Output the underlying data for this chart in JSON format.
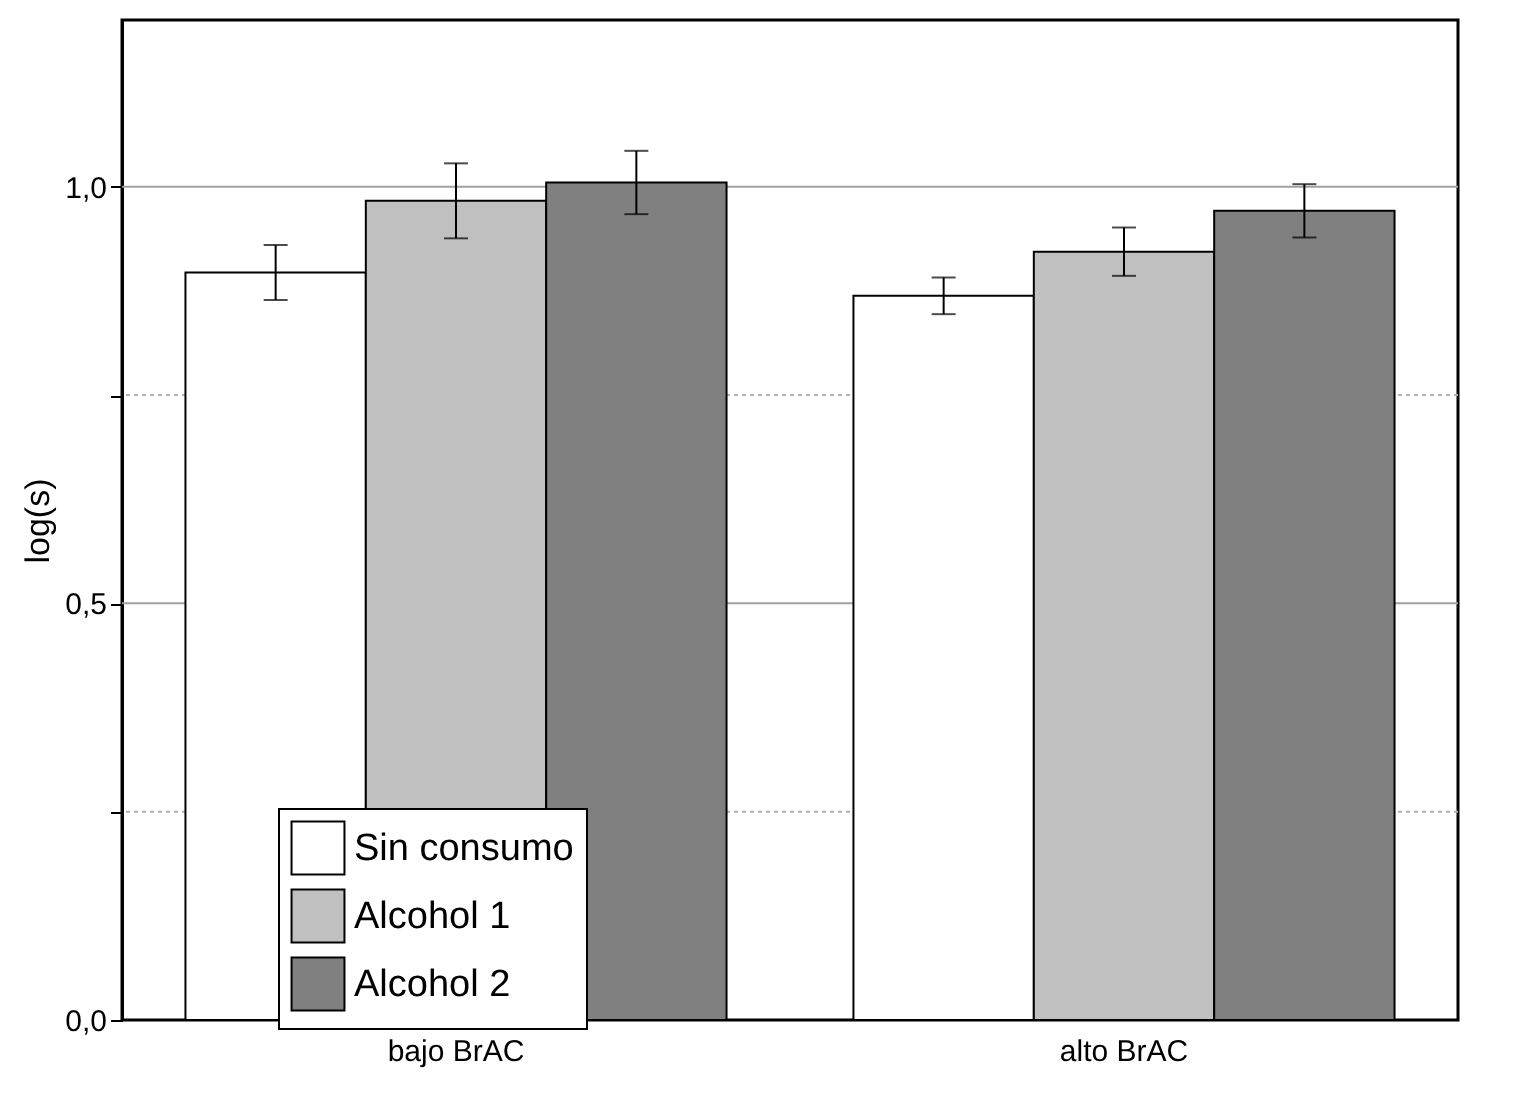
{
  "chart_data": {
    "type": "bar",
    "ylabel": "log(s)",
    "categories": [
      "bajo BrAC",
      "alto BrAC"
    ],
    "series": [
      {
        "name": "Sin consumo",
        "color": "#ffffff",
        "values": [
          0.897,
          0.869
        ],
        "errors": [
          0.033,
          0.022
        ]
      },
      {
        "name": "Alcohol 1",
        "color": "#c0c0c0",
        "values": [
          0.983,
          0.922
        ],
        "errors": [
          0.045,
          0.029
        ]
      },
      {
        "name": "Alcohol 2",
        "color": "#808080",
        "values": [
          1.005,
          0.971
        ],
        "errors": [
          0.038,
          0.032
        ]
      }
    ],
    "ylim": [
      0,
      1.2
    ],
    "yticks": [
      {
        "value": 0,
        "label": "0,0"
      },
      {
        "value": 0.25,
        "label": null
      },
      {
        "value": 0.5,
        "label": "0,5"
      },
      {
        "value": 0.75,
        "label": null
      },
      {
        "value": 1.0,
        "label": "1,0"
      }
    ],
    "grid": "y",
    "legend": "bottom left"
  }
}
